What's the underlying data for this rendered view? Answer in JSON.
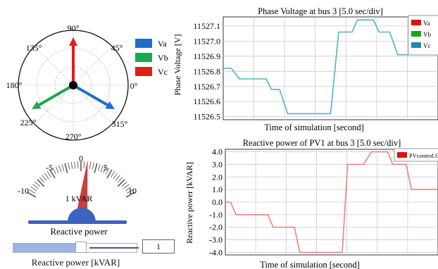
{
  "phasor": {
    "angle_labels": [
      "90°",
      "45°",
      "0°",
      "315°",
      "270°",
      "225°",
      "180°",
      "135°"
    ],
    "legend": [
      {
        "name": "Va",
        "color": "#1f6fc4"
      },
      {
        "name": "Vb",
        "color": "#1fa652"
      },
      {
        "name": "Vc",
        "color": "#e21b1b"
      }
    ],
    "vector_angles_deg": {
      "Va": -30,
      "Vb": 210,
      "Vc": 90
    }
  },
  "gauge": {
    "tick_labels": [
      "-10",
      "-5",
      "0",
      "5",
      "10"
    ],
    "readout": "1 kVAR",
    "title": "Reactive power",
    "value": 1,
    "min": -10,
    "max": 10
  },
  "slider": {
    "value": "1",
    "label": "Reactive power [kVAR]",
    "fraction": 0.55
  },
  "chart_data": [
    {
      "type": "line",
      "title": "Phase Voltage at bus 3 [5.0 sec/div]",
      "xlabel": "Time of simulation [second]",
      "ylabel": "Phase Voltage [V]",
      "ylim": [
        11526.48,
        11527.16
      ],
      "yticks": [
        "11526.5",
        "11526.6",
        "11526.7",
        "11526.8",
        "11526.9",
        "11527.0",
        "11527.1"
      ],
      "ytick_values": [
        11526.5,
        11526.6,
        11526.7,
        11526.8,
        11526.9,
        11527.0,
        11527.1
      ],
      "legend": [
        "Va",
        "Vb",
        "Vc"
      ],
      "legend_colors": [
        "#d11",
        "#1a1",
        "#28a"
      ],
      "line_color": "#4fb3c9",
      "x_divs": 7,
      "points": [
        [
          0,
          11526.82
        ],
        [
          0.3,
          11526.82
        ],
        [
          0.6,
          11526.75
        ],
        [
          1.6,
          11526.75
        ],
        [
          1.8,
          11526.68
        ],
        [
          2.1,
          11526.68
        ],
        [
          2.4,
          11526.52
        ],
        [
          4.0,
          11526.52
        ],
        [
          4.3,
          11527.06
        ],
        [
          4.8,
          11527.06
        ],
        [
          5.0,
          11527.14
        ],
        [
          5.6,
          11527.14
        ],
        [
          5.8,
          11527.06
        ],
        [
          6.2,
          11527.06
        ],
        [
          6.5,
          11526.91
        ],
        [
          8.0,
          11526.91
        ]
      ],
      "x_max": 8.0
    },
    {
      "type": "line",
      "title": "Reactive power of PV1 at bus 3 [5.0 sec/div]",
      "xlabel": "Time of simulation [second]",
      "ylabel": "Reactive power [kVAR]",
      "ylim": [
        -4.2,
        4.2
      ],
      "yticks": [
        "4.0",
        "3.0",
        "2.0",
        "1.0",
        "0.0",
        "-1.0",
        "-2.0",
        "-3.0",
        "-4.0"
      ],
      "ytick_values": [
        4,
        3,
        2,
        1,
        0,
        -1,
        -2,
        -3,
        -4
      ],
      "legend": [
        "PVcontrol.Q"
      ],
      "legend_colors": [
        "#d11"
      ],
      "line_color": "#f08080",
      "x_divs": 7,
      "points": [
        [
          0,
          0
        ],
        [
          0.2,
          0
        ],
        [
          0.4,
          -1
        ],
        [
          1.6,
          -1
        ],
        [
          1.8,
          -2
        ],
        [
          2.6,
          -2
        ],
        [
          2.8,
          -4
        ],
        [
          4.4,
          -4
        ],
        [
          4.6,
          3
        ],
        [
          5.2,
          3
        ],
        [
          5.5,
          4
        ],
        [
          6.1,
          4
        ],
        [
          6.3,
          3
        ],
        [
          6.8,
          3
        ],
        [
          7.0,
          1
        ],
        [
          8.0,
          1
        ]
      ],
      "x_max": 8.0
    }
  ]
}
